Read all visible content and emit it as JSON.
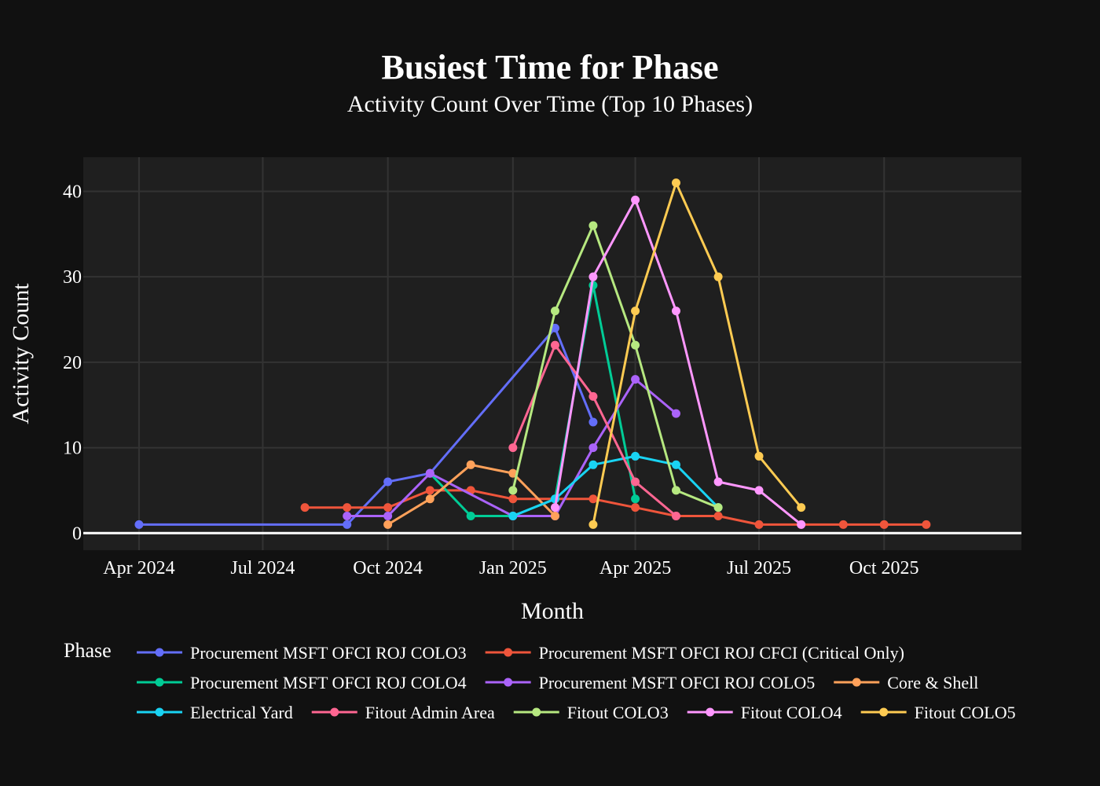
{
  "chart_data": {
    "type": "line",
    "title": "Busiest Time for Phase",
    "subtitle": "Activity Count Over Time (Top 10 Phases)",
    "xlabel": "Month",
    "ylabel": "Activity Count",
    "legend_title": "Phase",
    "legend_position": "bottom",
    "grid": true,
    "xlim": [
      "2024-02-20",
      "2026-01-10"
    ],
    "ylim": [
      -2,
      44
    ],
    "x_ticks": [
      {
        "date": "2024-04-01",
        "label": "Apr 2024"
      },
      {
        "date": "2024-07-01",
        "label": "Jul 2024"
      },
      {
        "date": "2024-10-01",
        "label": "Oct 2024"
      },
      {
        "date": "2025-01-01",
        "label": "Jan 2025"
      },
      {
        "date": "2025-04-01",
        "label": "Apr 2025"
      },
      {
        "date": "2025-07-01",
        "label": "Jul 2025"
      },
      {
        "date": "2025-10-01",
        "label": "Oct 2025"
      }
    ],
    "y_ticks": [
      0,
      10,
      20,
      30,
      40
    ],
    "series": [
      {
        "name": "Procurement MSFT OFCI ROJ COLO3",
        "color": "#636efa",
        "points": [
          [
            "2024-04-01",
            1
          ],
          [
            "2024-09-01",
            1
          ],
          [
            "2024-10-01",
            6
          ],
          [
            "2024-11-01",
            7
          ],
          [
            "2025-02-01",
            24
          ],
          [
            "2025-03-01",
            13
          ]
        ]
      },
      {
        "name": "Procurement MSFT OFCI ROJ CFCI (Critical Only)",
        "color": "#ef553b",
        "points": [
          [
            "2024-08-01",
            3
          ],
          [
            "2024-09-01",
            3
          ],
          [
            "2024-10-01",
            3
          ],
          [
            "2024-11-01",
            5
          ],
          [
            "2024-12-01",
            5
          ],
          [
            "2025-01-01",
            4
          ],
          [
            "2025-02-01",
            4
          ],
          [
            "2025-03-01",
            4
          ],
          [
            "2025-04-01",
            3
          ],
          [
            "2025-05-01",
            2
          ],
          [
            "2025-06-01",
            2
          ],
          [
            "2025-07-01",
            1
          ],
          [
            "2025-08-01",
            1
          ],
          [
            "2025-09-01",
            1
          ],
          [
            "2025-10-01",
            1
          ],
          [
            "2025-11-01",
            1
          ]
        ]
      },
      {
        "name": "Procurement MSFT OFCI ROJ COLO4",
        "color": "#00cc96",
        "points": [
          [
            "2024-11-01",
            7
          ],
          [
            "2024-12-01",
            2
          ],
          [
            "2025-01-01",
            2
          ],
          [
            "2025-02-01",
            4
          ],
          [
            "2025-03-01",
            29
          ],
          [
            "2025-04-01",
            4
          ]
        ]
      },
      {
        "name": "Procurement MSFT OFCI ROJ COLO5",
        "color": "#ab63fa",
        "points": [
          [
            "2024-09-01",
            2
          ],
          [
            "2024-10-01",
            2
          ],
          [
            "2024-11-01",
            7
          ],
          [
            "2025-01-01",
            2
          ],
          [
            "2025-02-01",
            2
          ],
          [
            "2025-03-01",
            10
          ],
          [
            "2025-04-01",
            18
          ],
          [
            "2025-05-01",
            14
          ]
        ]
      },
      {
        "name": "Core & Shell",
        "color": "#ffa15a",
        "points": [
          [
            "2024-10-01",
            1
          ],
          [
            "2024-11-01",
            4
          ],
          [
            "2024-12-01",
            8
          ],
          [
            "2025-01-01",
            7
          ],
          [
            "2025-02-01",
            2
          ]
        ]
      },
      {
        "name": "Electrical Yard",
        "color": "#19d3f3",
        "points": [
          [
            "2025-01-01",
            2
          ],
          [
            "2025-02-01",
            4
          ],
          [
            "2025-03-01",
            8
          ],
          [
            "2025-04-01",
            9
          ],
          [
            "2025-05-01",
            8
          ],
          [
            "2025-06-01",
            3
          ]
        ]
      },
      {
        "name": "Fitout Admin Area",
        "color": "#ff6692",
        "points": [
          [
            "2025-01-01",
            10
          ],
          [
            "2025-02-01",
            22
          ],
          [
            "2025-03-01",
            16
          ],
          [
            "2025-04-01",
            6
          ],
          [
            "2025-05-01",
            2
          ]
        ]
      },
      {
        "name": "Fitout COLO3",
        "color": "#b6e880",
        "points": [
          [
            "2025-01-01",
            5
          ],
          [
            "2025-02-01",
            26
          ],
          [
            "2025-03-01",
            36
          ],
          [
            "2025-04-01",
            22
          ],
          [
            "2025-05-01",
            5
          ],
          [
            "2025-06-01",
            3
          ]
        ]
      },
      {
        "name": "Fitout COLO4",
        "color": "#ff97ff",
        "points": [
          [
            "2025-02-01",
            3
          ],
          [
            "2025-03-01",
            30
          ],
          [
            "2025-04-01",
            39
          ],
          [
            "2025-05-01",
            26
          ],
          [
            "2025-06-01",
            6
          ],
          [
            "2025-07-01",
            5
          ],
          [
            "2025-08-01",
            1
          ]
        ]
      },
      {
        "name": "Fitout COLO5",
        "color": "#fecb52",
        "points": [
          [
            "2025-03-01",
            1
          ],
          [
            "2025-04-01",
            26
          ],
          [
            "2025-05-01",
            41
          ],
          [
            "2025-06-01",
            30
          ],
          [
            "2025-07-01",
            9
          ],
          [
            "2025-08-01",
            3
          ]
        ]
      }
    ]
  }
}
